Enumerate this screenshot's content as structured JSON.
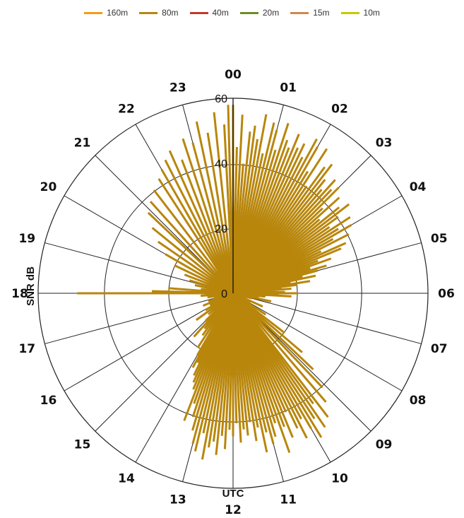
{
  "chart_data": {
    "type": "polar-bar",
    "legend": [
      {
        "label": "160m",
        "color": "#f39c12"
      },
      {
        "label": "80m",
        "color": "#b8860b"
      },
      {
        "label": "40m",
        "color": "#c0392b"
      },
      {
        "label": "20m",
        "color": "#6b8e23"
      },
      {
        "label": "15m",
        "color": "#d2874c"
      },
      {
        "label": "10m",
        "color": "#c8c800"
      }
    ],
    "hour_labels": [
      "00",
      "01",
      "02",
      "03",
      "04",
      "05",
      "06",
      "07",
      "08",
      "09",
      "10",
      "11",
      "12",
      "13",
      "14",
      "15",
      "16",
      "17",
      "18",
      "19",
      "20",
      "21",
      "22",
      "23"
    ],
    "radial_ticks": [
      0,
      20,
      40,
      60
    ],
    "radial_range": [
      0,
      60
    ],
    "radial_axis_title": "SNR dB",
    "angular_axis_title": "UTC",
    "series": [
      {
        "name": "80m",
        "color": "#b8860b",
        "points": [
          [
            0.0,
            58
          ],
          [
            0.1,
            45
          ],
          [
            0.2,
            55
          ],
          [
            0.3,
            40
          ],
          [
            0.4,
            50
          ],
          [
            0.5,
            52
          ],
          [
            0.6,
            48
          ],
          [
            0.7,
            56
          ],
          [
            0.8,
            44
          ],
          [
            0.9,
            54
          ],
          [
            1.0,
            52
          ],
          [
            1.1,
            46
          ],
          [
            1.2,
            55
          ],
          [
            1.3,
            50
          ],
          [
            1.4,
            48
          ],
          [
            1.5,
            53
          ],
          [
            1.6,
            49
          ],
          [
            1.7,
            51
          ],
          [
            1.8,
            47
          ],
          [
            1.9,
            54
          ],
          [
            2.0,
            52
          ],
          [
            2.1,
            44
          ],
          [
            2.2,
            53
          ],
          [
            2.3,
            40
          ],
          [
            2.4,
            48
          ],
          [
            2.5,
            50
          ],
          [
            2.6,
            45
          ],
          [
            2.7,
            42
          ],
          [
            2.8,
            47
          ],
          [
            2.9,
            44
          ],
          [
            3.0,
            46
          ],
          [
            3.1,
            38
          ],
          [
            3.2,
            44
          ],
          [
            3.3,
            35
          ],
          [
            3.4,
            42
          ],
          [
            3.5,
            45
          ],
          [
            3.6,
            40
          ],
          [
            3.7,
            36
          ],
          [
            3.8,
            43
          ],
          [
            3.9,
            38
          ],
          [
            4.0,
            42
          ],
          [
            4.1,
            35
          ],
          [
            4.2,
            40
          ],
          [
            4.3,
            30
          ],
          [
            4.4,
            38
          ],
          [
            4.5,
            36
          ],
          [
            4.6,
            28
          ],
          [
            4.7,
            32
          ],
          [
            4.8,
            25
          ],
          [
            4.9,
            30
          ],
          [
            5.0,
            27
          ],
          [
            5.1,
            22
          ],
          [
            5.2,
            26
          ],
          [
            5.3,
            18
          ],
          [
            5.4,
            24
          ],
          [
            5.5,
            20
          ],
          [
            5.6,
            15
          ],
          [
            5.7,
            18
          ],
          [
            5.8,
            12
          ],
          [
            5.9,
            16
          ],
          [
            6.0,
            20
          ],
          [
            6.1,
            14
          ],
          [
            6.2,
            18
          ],
          [
            6.4,
            10
          ],
          [
            6.6,
            8
          ],
          [
            6.8,
            12
          ],
          [
            7.0,
            6
          ],
          [
            7.3,
            4
          ],
          [
            7.6,
            10
          ],
          [
            7.9,
            6
          ],
          [
            8.2,
            12
          ],
          [
            8.5,
            20
          ],
          [
            8.7,
            28
          ],
          [
            8.9,
            34
          ],
          [
            9.1,
            40
          ],
          [
            9.3,
            44
          ],
          [
            9.5,
            48
          ],
          [
            9.6,
            42
          ],
          [
            9.7,
            50
          ],
          [
            9.8,
            46
          ],
          [
            9.9,
            52
          ],
          [
            10.0,
            48
          ],
          [
            10.1,
            44
          ],
          [
            10.2,
            50
          ],
          [
            10.3,
            46
          ],
          [
            10.4,
            40
          ],
          [
            10.5,
            48
          ],
          [
            10.6,
            44
          ],
          [
            10.7,
            52
          ],
          [
            10.8,
            42
          ],
          [
            10.9,
            46
          ],
          [
            11.0,
            48
          ],
          [
            11.1,
            44
          ],
          [
            11.2,
            50
          ],
          [
            11.3,
            42
          ],
          [
            11.4,
            46
          ],
          [
            11.5,
            40
          ],
          [
            11.6,
            44
          ],
          [
            11.7,
            42
          ],
          [
            11.8,
            46
          ],
          [
            11.9,
            40
          ],
          [
            12.0,
            44
          ],
          [
            12.1,
            42
          ],
          [
            12.2,
            48
          ],
          [
            12.3,
            44
          ],
          [
            12.4,
            50
          ],
          [
            12.5,
            46
          ],
          [
            12.6,
            48
          ],
          [
            12.7,
            52
          ],
          [
            12.8,
            44
          ],
          [
            12.9,
            50
          ],
          [
            13.0,
            48
          ],
          [
            13.1,
            44
          ],
          [
            13.2,
            40
          ],
          [
            13.3,
            36
          ],
          [
            13.4,
            42
          ],
          [
            13.5,
            32
          ],
          [
            13.6,
            30
          ],
          [
            13.7,
            28
          ],
          [
            13.8,
            24
          ],
          [
            13.9,
            26
          ],
          [
            14.0,
            22
          ],
          [
            14.2,
            20
          ],
          [
            14.4,
            16
          ],
          [
            14.6,
            14
          ],
          [
            14.8,
            18
          ],
          [
            15.0,
            12
          ],
          [
            15.3,
            10
          ],
          [
            15.6,
            14
          ],
          [
            15.9,
            10
          ],
          [
            16.2,
            8
          ],
          [
            16.5,
            10
          ],
          [
            16.8,
            8
          ],
          [
            17.1,
            6
          ],
          [
            17.4,
            8
          ],
          [
            17.7,
            10
          ],
          [
            18.0,
            48
          ],
          [
            18.1,
            25
          ],
          [
            18.3,
            20
          ],
          [
            18.5,
            10
          ],
          [
            18.8,
            12
          ],
          [
            19.1,
            14
          ],
          [
            19.4,
            16
          ],
          [
            19.7,
            20
          ],
          [
            20.0,
            24
          ],
          [
            20.3,
            28
          ],
          [
            20.6,
            32
          ],
          [
            20.9,
            36
          ],
          [
            21.2,
            38
          ],
          [
            21.5,
            40
          ],
          [
            21.8,
            42
          ],
          [
            22.0,
            44
          ],
          [
            22.2,
            46
          ],
          [
            22.4,
            48
          ],
          [
            22.6,
            44
          ],
          [
            22.8,
            50
          ],
          [
            23.0,
            48
          ],
          [
            23.2,
            54
          ],
          [
            23.4,
            50
          ],
          [
            23.6,
            56
          ],
          [
            23.8,
            52
          ],
          [
            23.9,
            58
          ]
        ]
      }
    ]
  }
}
